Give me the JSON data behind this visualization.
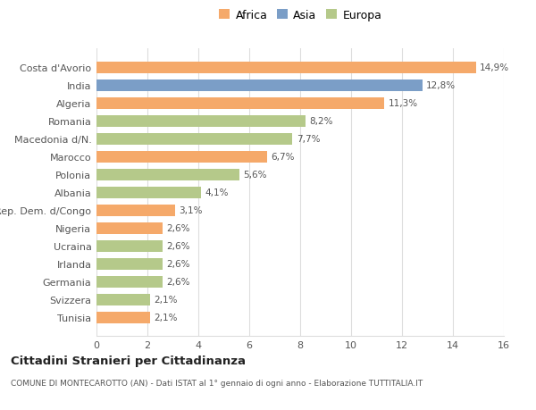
{
  "categories": [
    "Tunisia",
    "Svizzera",
    "Germania",
    "Irlanda",
    "Ucraina",
    "Nigeria",
    "Rep. Dem. d/Congo",
    "Albania",
    "Polonia",
    "Marocco",
    "Macedonia d/N.",
    "Romania",
    "Algeria",
    "India",
    "Costa d'Avorio"
  ],
  "values": [
    2.1,
    2.1,
    2.6,
    2.6,
    2.6,
    2.6,
    3.1,
    4.1,
    5.6,
    6.7,
    7.7,
    8.2,
    11.3,
    12.8,
    14.9
  ],
  "colors": [
    "#f5a96a",
    "#b5c98a",
    "#b5c98a",
    "#b5c98a",
    "#b5c98a",
    "#f5a96a",
    "#f5a96a",
    "#b5c98a",
    "#b5c98a",
    "#f5a96a",
    "#b5c98a",
    "#b5c98a",
    "#f5a96a",
    "#7b9ec7",
    "#f5a96a"
  ],
  "labels": [
    "2,1%",
    "2,1%",
    "2,6%",
    "2,6%",
    "2,6%",
    "2,6%",
    "3,1%",
    "4,1%",
    "5,6%",
    "6,7%",
    "7,7%",
    "8,2%",
    "11,3%",
    "12,8%",
    "14,9%"
  ],
  "legend": [
    {
      "label": "Africa",
      "color": "#f5a96a"
    },
    {
      "label": "Asia",
      "color": "#7b9ec7"
    },
    {
      "label": "Europa",
      "color": "#b5c98a"
    }
  ],
  "xlim": [
    0,
    16
  ],
  "xticks": [
    0,
    2,
    4,
    6,
    8,
    10,
    12,
    14,
    16
  ],
  "title": "Cittadini Stranieri per Cittadinanza",
  "subtitle": "COMUNE DI MONTECAROTTO (AN) - Dati ISTAT al 1° gennaio di ogni anno - Elaborazione TUTTITALIA.IT",
  "bg_color": "#ffffff",
  "grid_color": "#dddddd"
}
